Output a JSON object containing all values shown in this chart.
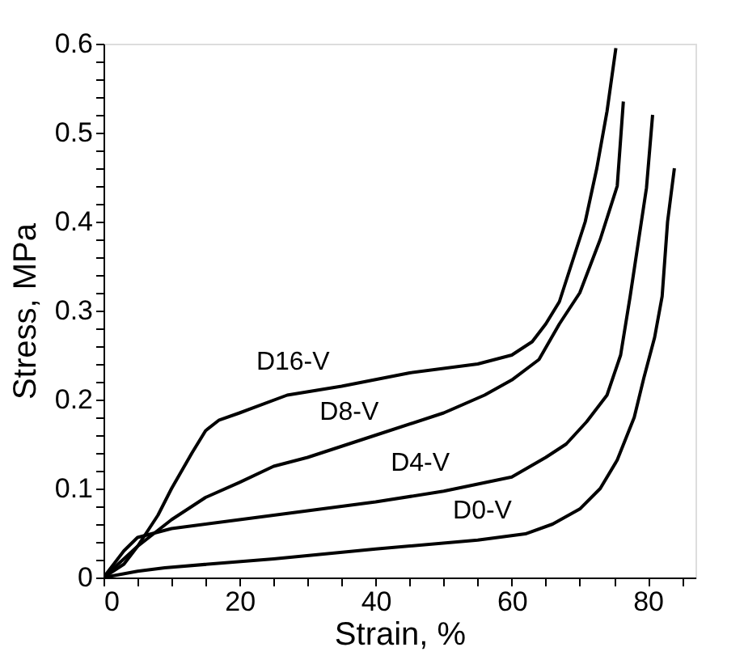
{
  "chart_data": {
    "type": "line",
    "xlabel": "Strain, %",
    "ylabel": "Stress, MPa",
    "xlim": [
      0,
      87
    ],
    "ylim": [
      0,
      0.6
    ],
    "xticks": [
      0,
      {
        "value": 5,
        "label": null
      },
      {
        "value": 10,
        "label": null
      },
      {
        "value": 15,
        "label": null
      },
      20,
      {
        "value": 25,
        "label": null
      },
      {
        "value": 30,
        "label": null
      },
      {
        "value": 35,
        "label": null
      },
      40,
      {
        "value": 45,
        "label": null
      },
      {
        "value": 50,
        "label": null
      },
      {
        "value": 55,
        "label": null
      },
      60,
      {
        "value": 65,
        "label": null
      },
      {
        "value": 70,
        "label": null
      },
      {
        "value": 75,
        "label": null
      },
      80,
      {
        "value": 85,
        "label": null
      }
    ],
    "yticks": [
      0,
      {
        "value": 0.02,
        "label": null
      },
      {
        "value": 0.04,
        "label": null
      },
      {
        "value": 0.06,
        "label": null
      },
      {
        "value": 0.08,
        "label": null
      },
      0.1,
      {
        "value": 0.12,
        "label": null
      },
      {
        "value": 0.14,
        "label": null
      },
      {
        "value": 0.16,
        "label": null
      },
      {
        "value": 0.18,
        "label": null
      },
      0.2,
      {
        "value": 0.22,
        "label": null
      },
      {
        "value": 0.24,
        "label": null
      },
      {
        "value": 0.26,
        "label": null
      },
      {
        "value": 0.28,
        "label": null
      },
      0.3,
      {
        "value": 0.32,
        "label": null
      },
      {
        "value": 0.34,
        "label": null
      },
      {
        "value": 0.36,
        "label": null
      },
      {
        "value": 0.38,
        "label": null
      },
      0.4,
      {
        "value": 0.42,
        "label": null
      },
      {
        "value": 0.44,
        "label": null
      },
      {
        "value": 0.46,
        "label": null
      },
      {
        "value": 0.48,
        "label": null
      },
      0.5,
      {
        "value": 0.52,
        "label": null
      },
      {
        "value": 0.54,
        "label": null
      },
      {
        "value": 0.56,
        "label": null
      },
      {
        "value": 0.58,
        "label": null
      },
      0.6
    ],
    "grid": false,
    "marker": "none",
    "line_style": "solid",
    "series": [
      {
        "name": "D16-V",
        "color": "#000000",
        "x": [
          0,
          3,
          5,
          8,
          10,
          13,
          15,
          17,
          20,
          27,
          35,
          45,
          55,
          60,
          63,
          65,
          67,
          70.8,
          72.5,
          74,
          75.3
        ],
        "values": [
          0,
          0.015,
          0.035,
          0.07,
          0.1,
          0.14,
          0.165,
          0.177,
          0.185,
          0.205,
          0.215,
          0.23,
          0.24,
          0.25,
          0.265,
          0.285,
          0.31,
          0.4,
          0.46,
          0.524,
          0.595
        ]
      },
      {
        "name": "D8-V",
        "color": "#000000",
        "x": [
          0,
          5,
          10,
          15,
          20,
          25,
          30,
          40,
          50,
          56,
          60,
          64,
          67,
          70,
          73,
          75.5,
          76.4
        ],
        "values": [
          0,
          0.035,
          0.065,
          0.09,
          0.107,
          0.125,
          0.135,
          0.16,
          0.185,
          0.205,
          0.222,
          0.245,
          0.285,
          0.32,
          0.38,
          0.44,
          0.535
        ]
      },
      {
        "name": "D4-V",
        "color": "#000000",
        "x": [
          0,
          3,
          5,
          10,
          20,
          30,
          40,
          50,
          60,
          65,
          68,
          71,
          74,
          76,
          77.4,
          79.8,
          80.7
        ],
        "values": [
          0,
          0.03,
          0.045,
          0.055,
          0.065,
          0.075,
          0.085,
          0.097,
          0.113,
          0.135,
          0.15,
          0.175,
          0.205,
          0.25,
          0.316,
          0.438,
          0.52
        ]
      },
      {
        "name": "D0-V",
        "color": "#000000",
        "x": [
          0,
          5,
          9,
          25,
          40,
          55,
          62,
          66,
          70,
          73,
          75.5,
          78,
          79.4,
          81,
          82.1,
          82.9,
          83.9
        ],
        "values": [
          0,
          0.007,
          0.011,
          0.021,
          0.032,
          0.042,
          0.049,
          0.06,
          0.077,
          0.1,
          0.132,
          0.18,
          0.224,
          0.27,
          0.316,
          0.4,
          0.46
        ]
      }
    ]
  }
}
